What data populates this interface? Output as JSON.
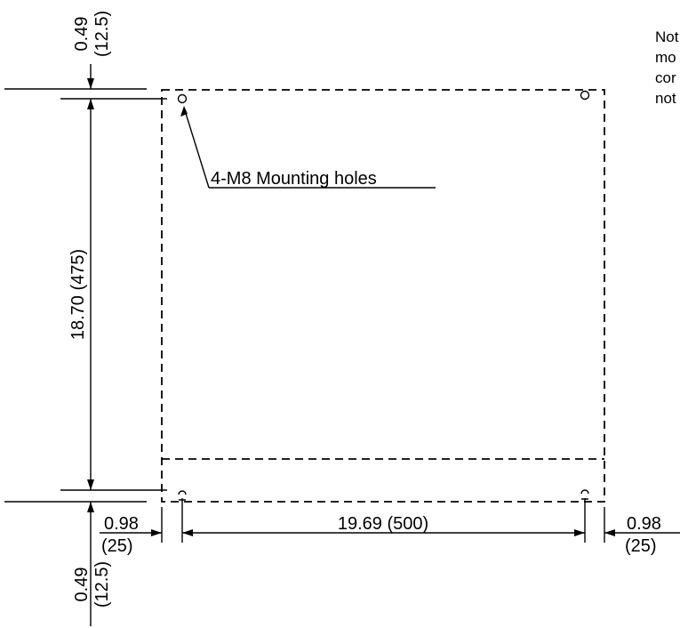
{
  "note": {
    "lines": [
      "Not",
      "mo",
      "cor",
      "not"
    ]
  },
  "labels": {
    "mounting_holes": "4-M8 Mounting holes",
    "height_total": "18.70 (475)",
    "top_offset_in": "0.49",
    "top_offset_mm": "(12.5)",
    "bottom_offset_in": "0.49",
    "bottom_offset_mm": "(12.5)",
    "left_offset_in": "0.98",
    "left_offset_mm": "(25)",
    "right_offset_in": "0.98",
    "right_offset_mm": "(25)",
    "hole_spacing": "19.69 (500)"
  }
}
